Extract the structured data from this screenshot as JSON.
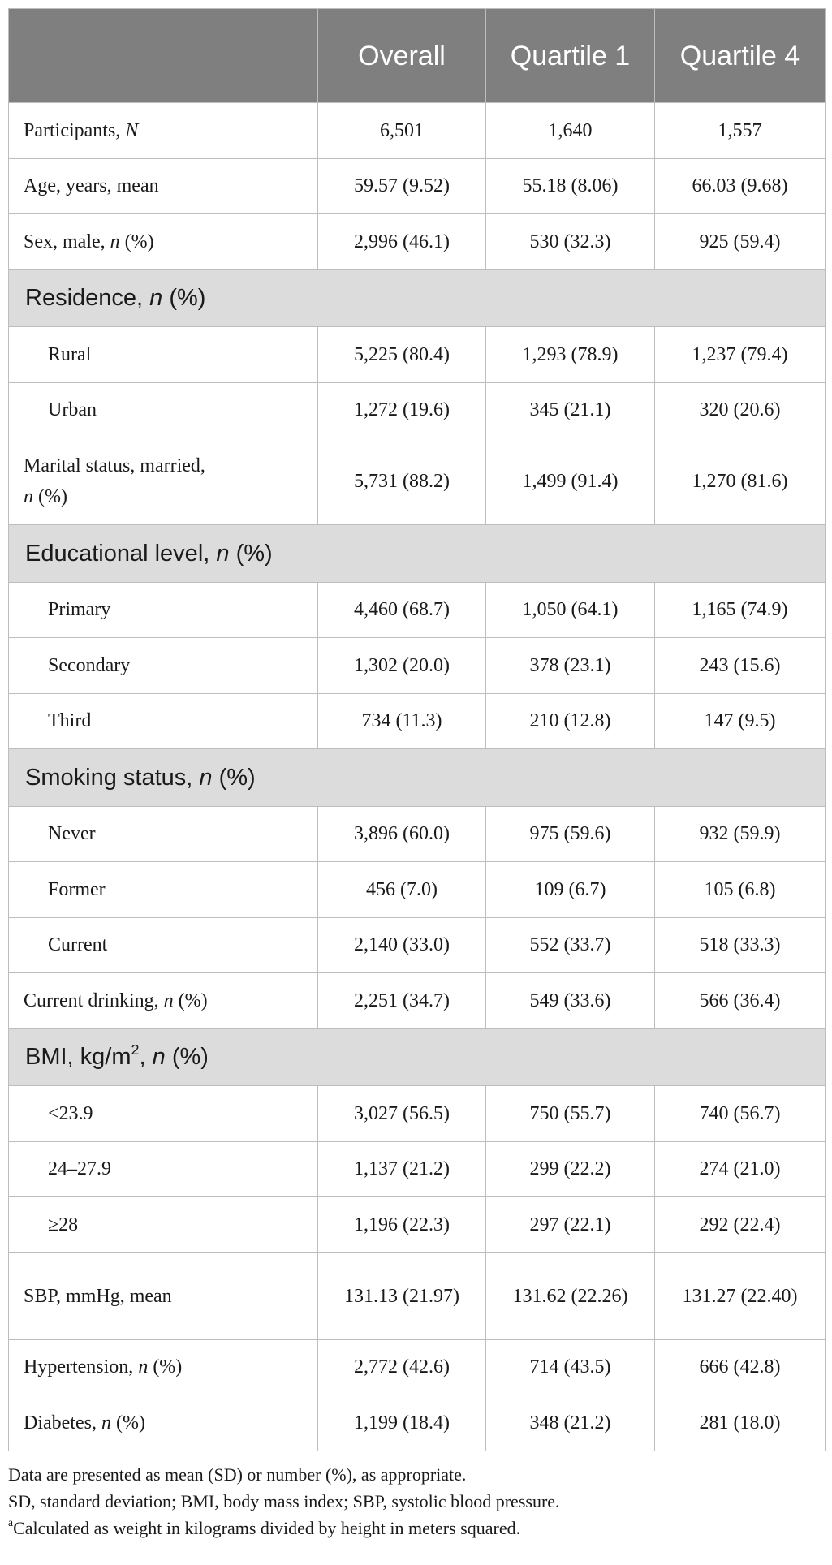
{
  "table": {
    "headers": [
      "",
      "Overall",
      "Quartile 1",
      "Quartile 4"
    ],
    "rows": [
      {
        "type": "data",
        "label": "Participants, ",
        "label_it": "N",
        "label_tail": "",
        "values": [
          "6,501",
          "1,640",
          "1,557"
        ]
      },
      {
        "type": "data",
        "label": "Age, years, mean",
        "label_it": "",
        "label_tail": "",
        "values": [
          "59.57 (9.52)",
          "55.18 (8.06)",
          "66.03 (9.68)"
        ]
      },
      {
        "type": "data",
        "label": "Sex, male, ",
        "label_it": "n",
        "label_tail": " (%)",
        "values": [
          "2,996 (46.1)",
          "530 (32.3)",
          "925 (59.4)"
        ]
      },
      {
        "type": "section",
        "label": "Residence, ",
        "label_it": "n",
        "label_tail": " (%)"
      },
      {
        "type": "sub",
        "label": "Rural",
        "values": [
          "5,225 (80.4)",
          "1,293 (78.9)",
          "1,237 (79.4)"
        ]
      },
      {
        "type": "sub",
        "label": "Urban",
        "values": [
          "1,272 (19.6)",
          "345 (21.1)",
          "320 (20.6)"
        ]
      },
      {
        "type": "data",
        "tall": true,
        "label": "Marital status, married,",
        "label_it": "n",
        "label_tail": " (%)",
        "values": [
          "5,731 (88.2)",
          "1,499 (91.4)",
          "1,270 (81.6)"
        ]
      },
      {
        "type": "section",
        "label": "Educational level, ",
        "label_it": "n",
        "label_tail": " (%)"
      },
      {
        "type": "sub",
        "label": "Primary",
        "values": [
          "4,460 (68.7)",
          "1,050 (64.1)",
          "1,165 (74.9)"
        ]
      },
      {
        "type": "sub",
        "label": "Secondary",
        "values": [
          "1,302 (20.0)",
          "378 (23.1)",
          "243 (15.6)"
        ]
      },
      {
        "type": "sub",
        "label": "Third",
        "values": [
          "734 (11.3)",
          "210 (12.8)",
          "147 (9.5)"
        ]
      },
      {
        "type": "section",
        "label": "Smoking status, ",
        "label_it": "n",
        "label_tail": " (%)"
      },
      {
        "type": "sub",
        "label": "Never",
        "values": [
          "3,896 (60.0)",
          "975 (59.6)",
          "932 (59.9)"
        ]
      },
      {
        "type": "sub",
        "label": "Former",
        "values": [
          "456 (7.0)",
          "109 (6.7)",
          "105 (6.8)"
        ]
      },
      {
        "type": "sub",
        "label": "Current",
        "values": [
          "2,140 (33.0)",
          "552 (33.7)",
          "518 (33.3)"
        ]
      },
      {
        "type": "data",
        "label": "Current drinking, ",
        "label_it": "n",
        "label_tail": " (%)",
        "values": [
          "2,251 (34.7)",
          "549 (33.6)",
          "566 (36.4)"
        ]
      },
      {
        "type": "section",
        "label": "BMI, kg/m",
        "label_sup": "2",
        "label_mid": ", ",
        "label_it": "n",
        "label_tail": " (%)"
      },
      {
        "type": "sub",
        "label": "<23.9",
        "values": [
          "3,027 (56.5)",
          "750 (55.7)",
          "740 (56.7)"
        ]
      },
      {
        "type": "sub",
        "label": "24–27.9",
        "values": [
          "1,137 (21.2)",
          "299 (22.2)",
          "274 (21.0)"
        ]
      },
      {
        "type": "sub",
        "label": "≥28",
        "values": [
          "1,196 (22.3)",
          "297 (22.1)",
          "292 (22.4)"
        ]
      },
      {
        "type": "data",
        "tall": true,
        "label": "SBP, mmHg, mean",
        "label_it": "",
        "label_tail": "",
        "values": [
          "131.13 (21.97)",
          "131.62 (22.26)",
          "131.27 (22.40)"
        ]
      },
      {
        "type": "data",
        "label": "Hypertension, ",
        "label_it": "n",
        "label_tail": " (%)",
        "values": [
          "2,772 (42.6)",
          "714 (43.5)",
          "666 (42.8)"
        ]
      },
      {
        "type": "data",
        "label": "Diabetes, ",
        "label_it": "n",
        "label_tail": " (%)",
        "values": [
          "1,199 (18.4)",
          "348 (21.2)",
          "281 (18.0)"
        ]
      }
    ]
  },
  "footnotes": {
    "line1": "Data are presented as mean (SD) or number (%), as appropriate.",
    "line2": "SD, standard deviation; BMI, body mass index; SBP, systolic blood pressure.",
    "line3_sup": "a",
    "line3": "Calculated as weight in kilograms divided by height in meters squared."
  }
}
